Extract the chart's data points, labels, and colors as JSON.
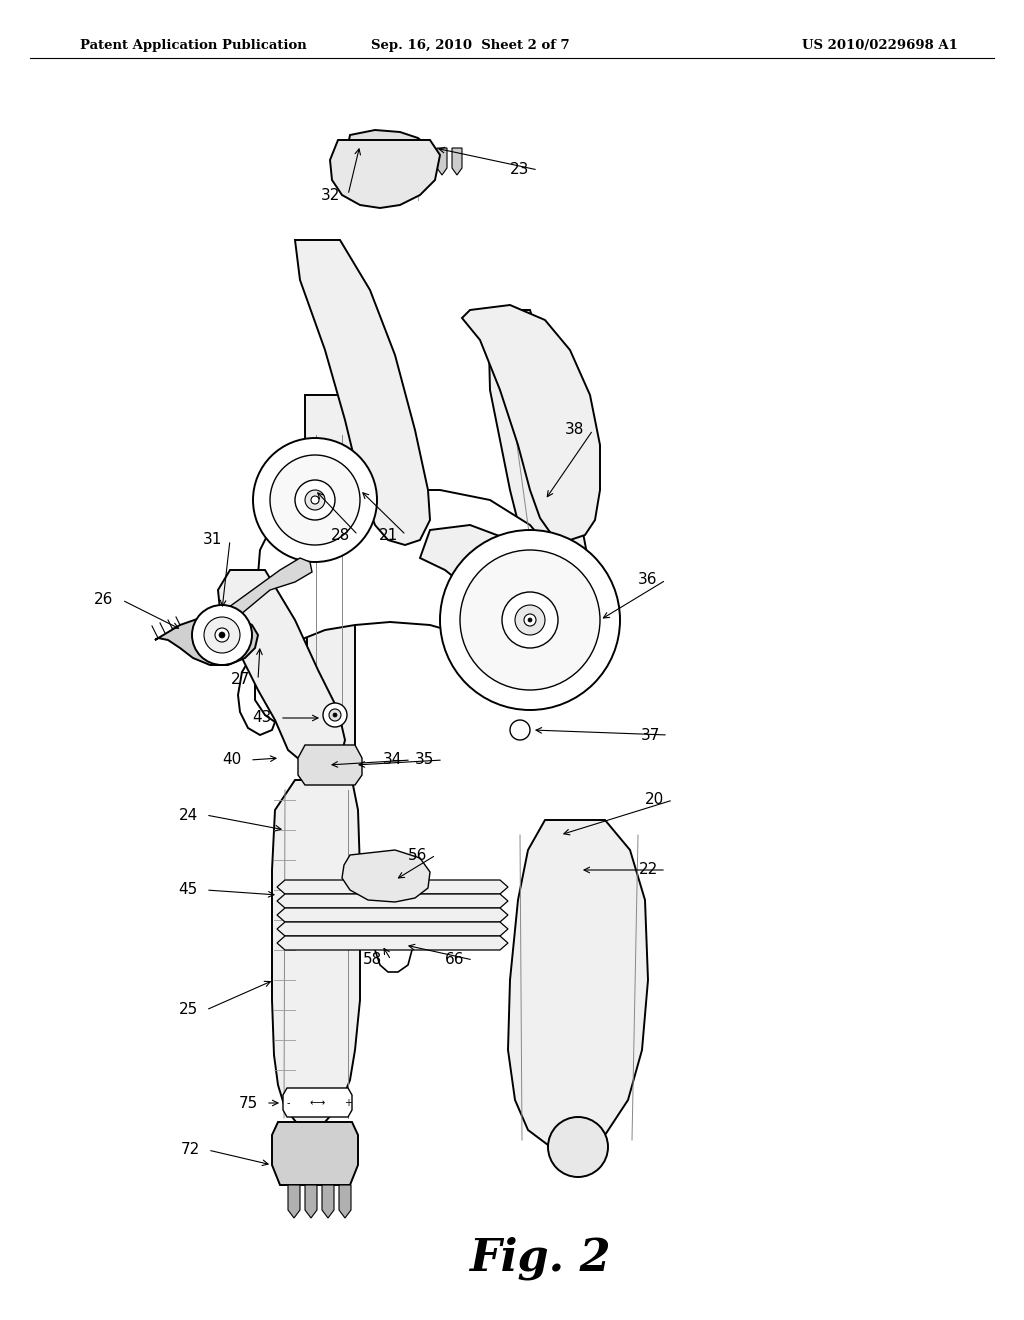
{
  "bg_color": "#ffffff",
  "header_left": "Patent Application Publication",
  "header_mid": "Sep. 16, 2010  Sheet 2 of 7",
  "header_right": "US 2010/0229698 A1",
  "figure_label": "Fig. 2",
  "line_color": "#000000",
  "fill_light": "#f5f5f5",
  "fill_mid": "#e0e0e0",
  "fill_dark": "#c0c0c0"
}
